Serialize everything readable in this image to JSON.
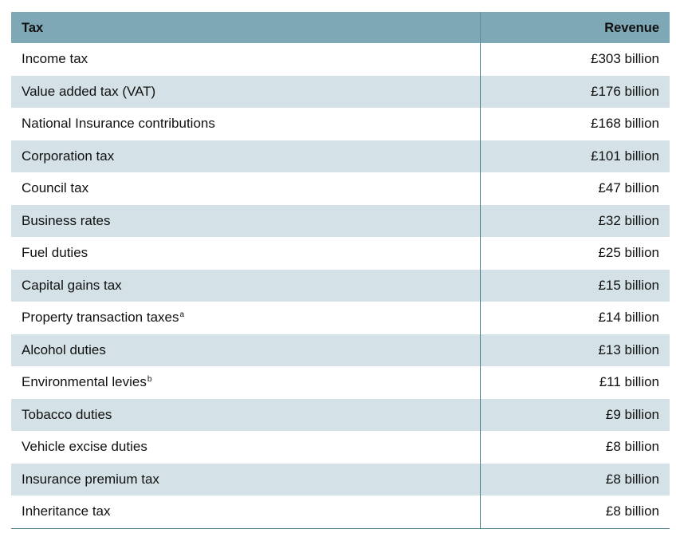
{
  "table": {
    "headers": {
      "tax": "Tax",
      "revenue": "Revenue"
    },
    "rows": [
      {
        "tax": "Income tax",
        "note": "",
        "revenue": "£303 billion"
      },
      {
        "tax": "Value added tax (VAT)",
        "note": "",
        "revenue": "£176 billion"
      },
      {
        "tax": "National Insurance contributions",
        "note": "",
        "revenue": "£168 billion"
      },
      {
        "tax": "Corporation tax",
        "note": "",
        "revenue": "£101 billion"
      },
      {
        "tax": "Council tax",
        "note": "",
        "revenue": "£47 billion"
      },
      {
        "tax": "Business rates",
        "note": "",
        "revenue": "£32 billion"
      },
      {
        "tax": "Fuel duties",
        "note": "",
        "revenue": "£25 billion"
      },
      {
        "tax": "Capital gains tax",
        "note": "",
        "revenue": "£15 billion"
      },
      {
        "tax": "Property transaction taxes",
        "note": "a",
        "revenue": "£14 billion"
      },
      {
        "tax": "Alcohol duties",
        "note": "",
        "revenue": "£13 billion"
      },
      {
        "tax": "Environmental levies",
        "note": "b",
        "revenue": "£11 billion"
      },
      {
        "tax": "Tobacco duties",
        "note": "",
        "revenue": "£9 billion"
      },
      {
        "tax": "Vehicle excise duties",
        "note": "",
        "revenue": "£8 billion"
      },
      {
        "tax": "Insurance premium tax",
        "note": "",
        "revenue": "£8 billion"
      },
      {
        "tax": "Inheritance tax",
        "note": "",
        "revenue": "£8 billion"
      }
    ]
  },
  "colors": {
    "header_bg": "#7ea8b5",
    "stripe_bg": "#d4e1e6",
    "rule": "#4a7d8c"
  }
}
